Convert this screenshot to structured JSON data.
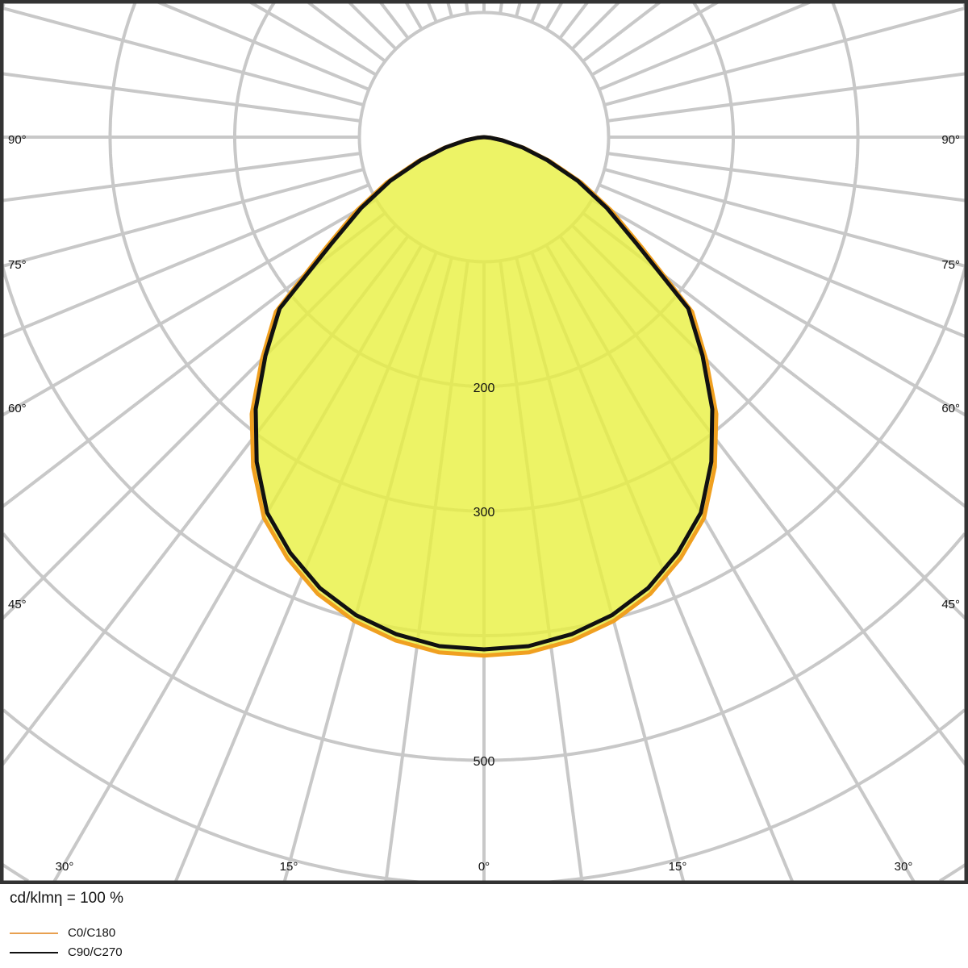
{
  "chart_data": {
    "type": "polar",
    "unit_note": "cd/klmη = 100 %",
    "radial_ticks": [
      100,
      200,
      300,
      400,
      500,
      600,
      700
    ],
    "radial_tick_labels_shown": [
      "200",
      "300",
      "500"
    ],
    "angle_labels_left": [
      "90°",
      "75°",
      "60°",
      "45°"
    ],
    "angle_labels_right": [
      "90°",
      "75°",
      "60°",
      "45°"
    ],
    "angle_labels_bottom": [
      "30°",
      "15°",
      "0°",
      "15°",
      "30°"
    ],
    "angles_deg": [
      0,
      5,
      10,
      15,
      20,
      25,
      30,
      35,
      40,
      45,
      50,
      55,
      60,
      65,
      70,
      75,
      80,
      85,
      90
    ],
    "series": [
      {
        "name": "C0/C180",
        "color": "#f0a020",
        "values": [
          416,
          415,
          410,
          402,
          390,
          373,
          353,
          323,
          290,
          252,
          218,
          155,
          118,
          86,
          56,
          33,
          15,
          5,
          0
        ]
      },
      {
        "name": "C90/C270",
        "color": "#111111",
        "values": [
          411,
          410,
          405,
          397,
          385,
          368,
          348,
          318,
          285,
          248,
          214,
          150,
          114,
          83,
          54,
          32,
          15,
          5,
          0
        ]
      }
    ],
    "fill_color": "#e8f040",
    "grid": true
  },
  "legend": {
    "title": "cd/klmη = 100 %",
    "items": [
      {
        "label": "C0/C180",
        "color": "#e8a050"
      },
      {
        "label": "C90/C270",
        "color": "#111111"
      }
    ]
  }
}
